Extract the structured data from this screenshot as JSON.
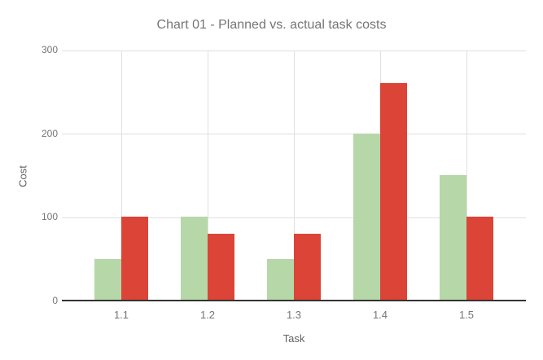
{
  "chart_data": {
    "type": "bar",
    "title": "Chart 01 - Planned vs. actual task costs",
    "xlabel": "Task",
    "ylabel": "Cost",
    "categories": [
      "1.1",
      "1.2",
      "1.3",
      "1.4",
      "1.5"
    ],
    "series": [
      {
        "name": "Planned",
        "color": "#b6d7a8",
        "values": [
          50,
          100,
          50,
          200,
          150
        ]
      },
      {
        "name": "Actual",
        "color": "#db4437",
        "values": [
          100,
          80,
          80,
          260,
          100
        ]
      }
    ],
    "ylim": [
      0,
      300
    ],
    "yticks": [
      0,
      100,
      200,
      300
    ],
    "grid": true,
    "legend_position": "none",
    "colors": {
      "title_text": "#757575",
      "tick_text": "#757575",
      "axis_title_text": "#616161",
      "gridline": "#e0e0e0",
      "baseline": "#333333",
      "background": "#ffffff"
    }
  }
}
